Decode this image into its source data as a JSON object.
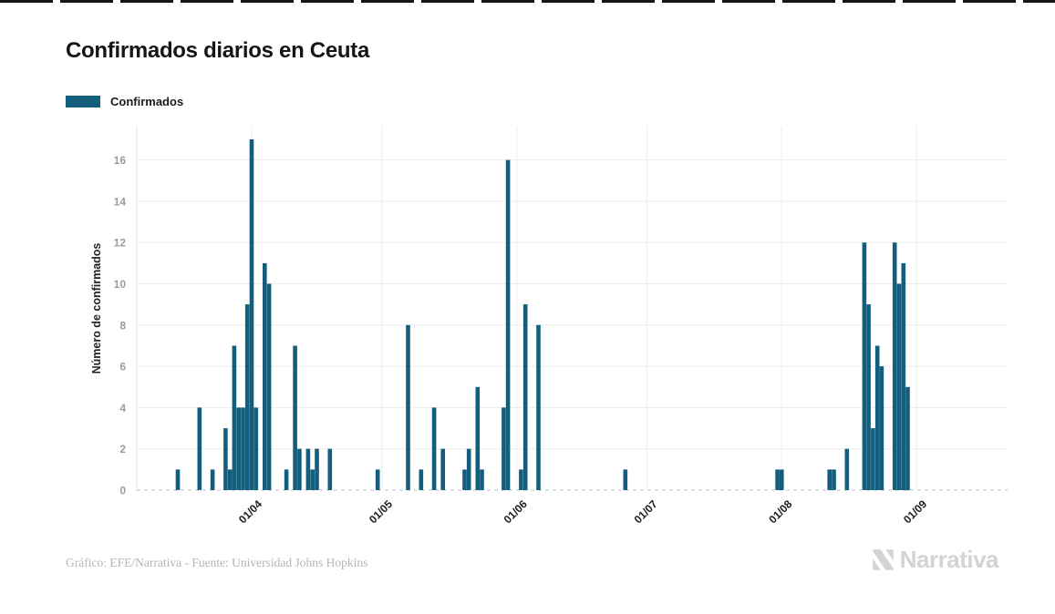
{
  "page": {
    "title": "Confirmados diarios en Ceuta",
    "footer_credit": "Gráfico: EFE/Narrativa - Fuente: Universidad Johns Hopkins",
    "brand": "Narrativa"
  },
  "legend": {
    "label": "Confirmados",
    "color": "#135e7d"
  },
  "chart_data": {
    "type": "bar",
    "title": "Confirmados diarios en Ceuta",
    "xlabel": "",
    "ylabel": "Número de confirmados",
    "ylim": [
      0,
      17.6
    ],
    "grid": true,
    "legend_position": "top-left",
    "bar_color": "#135e7d",
    "y_ticks": [
      0,
      2,
      4,
      6,
      8,
      10,
      12,
      14,
      16
    ],
    "x_tick_labels": [
      "01/04",
      "01/05",
      "01/06",
      "01/07",
      "01/08",
      "01/09"
    ],
    "x_tick_days": [
      0,
      30,
      61,
      91,
      122,
      153
    ],
    "series": [
      {
        "name": "Confirmados",
        "points": [
          {
            "date": "15/03",
            "day": -17,
            "value": 1
          },
          {
            "date": "20/03",
            "day": -12,
            "value": 4
          },
          {
            "date": "23/03",
            "day": -9,
            "value": 1
          },
          {
            "date": "26/03",
            "day": -6,
            "value": 3
          },
          {
            "date": "27/03",
            "day": -5,
            "value": 1
          },
          {
            "date": "28/03",
            "day": -4,
            "value": 7
          },
          {
            "date": "29/03",
            "day": -3,
            "value": 4
          },
          {
            "date": "30/03",
            "day": -2,
            "value": 4
          },
          {
            "date": "31/03",
            "day": -1,
            "value": 9
          },
          {
            "date": "01/04",
            "day": 0,
            "value": 17
          },
          {
            "date": "02/04",
            "day": 1,
            "value": 4
          },
          {
            "date": "04/04",
            "day": 3,
            "value": 11
          },
          {
            "date": "05/04",
            "day": 4,
            "value": 10
          },
          {
            "date": "09/04",
            "day": 8,
            "value": 1
          },
          {
            "date": "11/04",
            "day": 10,
            "value": 7
          },
          {
            "date": "12/04",
            "day": 11,
            "value": 2
          },
          {
            "date": "14/04",
            "day": 13,
            "value": 2
          },
          {
            "date": "15/04",
            "day": 14,
            "value": 1
          },
          {
            "date": "16/04",
            "day": 15,
            "value": 2
          },
          {
            "date": "19/04",
            "day": 18,
            "value": 2
          },
          {
            "date": "30/04",
            "day": 29,
            "value": 1
          },
          {
            "date": "07/05",
            "day": 36,
            "value": 8
          },
          {
            "date": "10/05",
            "day": 39,
            "value": 1
          },
          {
            "date": "13/05",
            "day": 42,
            "value": 4
          },
          {
            "date": "15/05",
            "day": 44,
            "value": 2
          },
          {
            "date": "20/05",
            "day": 49,
            "value": 1
          },
          {
            "date": "21/05",
            "day": 50,
            "value": 2
          },
          {
            "date": "23/05",
            "day": 52,
            "value": 5
          },
          {
            "date": "24/05",
            "day": 53,
            "value": 1
          },
          {
            "date": "29/05",
            "day": 58,
            "value": 4
          },
          {
            "date": "30/05",
            "day": 59,
            "value": 16
          },
          {
            "date": "02/06",
            "day": 62,
            "value": 1
          },
          {
            "date": "03/06",
            "day": 63,
            "value": 9
          },
          {
            "date": "06/06",
            "day": 66,
            "value": 8
          },
          {
            "date": "26/06",
            "day": 86,
            "value": 1
          },
          {
            "date": "31/07",
            "day": 121,
            "value": 1
          },
          {
            "date": "01/08",
            "day": 122,
            "value": 1
          },
          {
            "date": "12/08",
            "day": 133,
            "value": 1
          },
          {
            "date": "13/08",
            "day": 134,
            "value": 1
          },
          {
            "date": "16/08",
            "day": 137,
            "value": 2
          },
          {
            "date": "20/08",
            "day": 141,
            "value": 12
          },
          {
            "date": "21/08",
            "day": 142,
            "value": 9
          },
          {
            "date": "22/08",
            "day": 143,
            "value": 3
          },
          {
            "date": "23/08",
            "day": 144,
            "value": 7
          },
          {
            "date": "24/08",
            "day": 145,
            "value": 6
          },
          {
            "date": "27/08",
            "day": 148,
            "value": 12
          },
          {
            "date": "28/08",
            "day": 149,
            "value": 10
          },
          {
            "date": "29/08",
            "day": 150,
            "value": 11
          },
          {
            "date": "30/08",
            "day": 151,
            "value": 5
          }
        ]
      }
    ]
  }
}
